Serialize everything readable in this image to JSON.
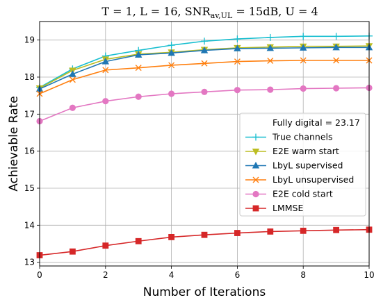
{
  "chart_data": {
    "type": "line",
    "title": "T = 1,  L = 16,  SNR_av,UL = 15dB,  U = 4",
    "title_parts": {
      "t": "T = 1,  L = 16,  SNR",
      "sub": "av,UL",
      "rest": " = 15dB,  U = 4"
    },
    "xlabel": "Number of Iterations",
    "ylabel": "Achievable Rate",
    "xlim": [
      0,
      10
    ],
    "ylim": [
      12.9,
      19.5
    ],
    "xticks": [
      0,
      2,
      4,
      6,
      8,
      10
    ],
    "yticks": [
      13,
      14,
      15,
      16,
      17,
      18,
      19
    ],
    "grid": true,
    "legend_position": "center-right",
    "legend_header": "Fully digital = 23.17",
    "x": [
      0,
      1,
      2,
      3,
      4,
      5,
      6,
      7,
      8,
      9,
      10
    ],
    "series": [
      {
        "name": "True channels",
        "color": "#17becf",
        "marker": "plus",
        "values": [
          17.72,
          18.22,
          18.57,
          18.72,
          18.86,
          18.97,
          19.03,
          19.07,
          19.1,
          19.1,
          19.11
        ]
      },
      {
        "name": "E2E warm start",
        "color": "#bcbd22",
        "marker": "triangle-down",
        "values": [
          17.7,
          18.18,
          18.48,
          18.62,
          18.67,
          18.74,
          18.79,
          18.81,
          18.83,
          18.83,
          18.84
        ]
      },
      {
        "name": "LbyL supervised",
        "color": "#1f77b4",
        "marker": "triangle-up",
        "values": [
          17.68,
          18.08,
          18.42,
          18.6,
          18.65,
          18.72,
          18.77,
          18.78,
          18.79,
          18.8,
          18.8
        ]
      },
      {
        "name": "LbyL unsupervised",
        "color": "#ff7f0e",
        "marker": "x",
        "values": [
          17.55,
          17.93,
          18.19,
          18.25,
          18.32,
          18.37,
          18.42,
          18.44,
          18.45,
          18.45,
          18.45
        ]
      },
      {
        "name": "E2E cold start",
        "color": "#e377c2",
        "marker": "circle",
        "values": [
          16.81,
          17.17,
          17.35,
          17.47,
          17.55,
          17.6,
          17.65,
          17.66,
          17.69,
          17.7,
          17.71
        ]
      },
      {
        "name": "LMMSE",
        "color": "#d62728",
        "marker": "square",
        "values": [
          13.19,
          13.29,
          13.45,
          13.57,
          13.68,
          13.74,
          13.79,
          13.83,
          13.85,
          13.87,
          13.88
        ]
      }
    ]
  }
}
